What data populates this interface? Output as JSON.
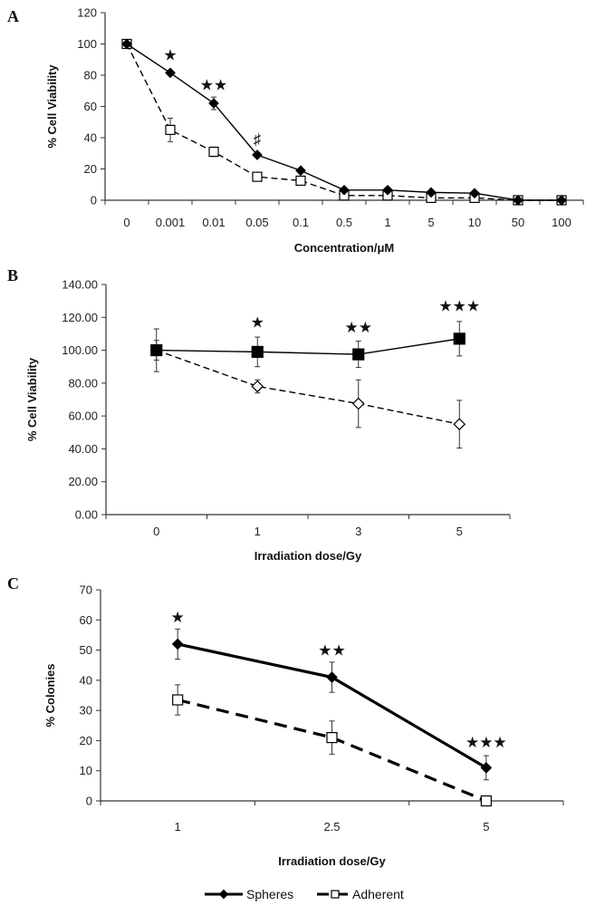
{
  "chart_data": [
    {
      "type": "line",
      "panel_label": "A",
      "xlabel": "Concentration/μM",
      "ylabel": "% Cell Viability",
      "categories": [
        "0",
        "0.001",
        "0.01",
        "0.05",
        "0.1",
        "0.5",
        "1",
        "5",
        "10",
        "50",
        "100"
      ],
      "ylim": [
        0,
        120
      ],
      "yticks": [
        "0",
        "20",
        "40",
        "60",
        "80",
        "100",
        "120"
      ],
      "series": [
        {
          "name": "Spheres",
          "marker": "filled-diamond",
          "line": "solid",
          "values": [
            100,
            81.5,
            62,
            29,
            19,
            6.5,
            6.5,
            5,
            4.5,
            0,
            0
          ],
          "errors": [
            0,
            1.5,
            4,
            1.5,
            1.5,
            1,
            1,
            0.5,
            0.5,
            0,
            0
          ]
        },
        {
          "name": "Adherent",
          "marker": "open-square",
          "line": "dashed",
          "values": [
            100,
            45,
            31,
            15,
            12.5,
            3,
            3,
            1.5,
            1.5,
            0,
            0
          ],
          "errors": [
            0,
            7.5,
            3,
            1,
            1,
            0.5,
            0.5,
            0.5,
            0.5,
            0,
            0
          ]
        }
      ],
      "annotations": [
        {
          "category": "0.001",
          "text": "★",
          "y": 93
        },
        {
          "category": "0.01",
          "text": "★★",
          "y": 74
        },
        {
          "category": "0.05",
          "text": "♯",
          "y": 39
        }
      ]
    },
    {
      "type": "line",
      "panel_label": "B",
      "xlabel": "Irradiation dose/Gy",
      "ylabel": "% Cell Viability",
      "categories": [
        "0",
        "1",
        "3",
        "5"
      ],
      "ylim": [
        0,
        140
      ],
      "yticks": [
        "0.00",
        "20.00",
        "40.00",
        "60.00",
        "80.00",
        "100.00",
        "120.00",
        "140.00"
      ],
      "series": [
        {
          "name": "Spheres",
          "marker": "filled-square",
          "line": "solid",
          "values": [
            100,
            99,
            97.5,
            107
          ],
          "errors": [
            13,
            9,
            8,
            10.5
          ]
        },
        {
          "name": "Adherent",
          "marker": "open-diamond",
          "line": "dashed",
          "values": [
            100,
            78,
            67.5,
            55
          ],
          "errors": [
            6,
            4,
            14.5,
            14.5
          ]
        }
      ],
      "annotations": [
        {
          "category": "1",
          "text": "★",
          "y": 117
        },
        {
          "category": "3",
          "text": "★★",
          "y": 114
        },
        {
          "category": "5",
          "text": "★★★",
          "y": 127
        }
      ]
    },
    {
      "type": "line",
      "panel_label": "C",
      "xlabel": "Irradiation dose/Gy",
      "ylabel": "% Colonies",
      "categories": [
        "1",
        "2.5",
        "5"
      ],
      "ylim": [
        0,
        70
      ],
      "yticks": [
        "0",
        "10",
        "20",
        "30",
        "40",
        "50",
        "60",
        "70"
      ],
      "series": [
        {
          "name": "Spheres",
          "marker": "filled-diamond",
          "line": "solid",
          "values": [
            52,
            41,
            11
          ],
          "errors": [
            5,
            5,
            4
          ]
        },
        {
          "name": "Adherent",
          "marker": "open-square",
          "line": "dashed",
          "values": [
            33.5,
            21,
            0
          ],
          "errors": [
            5,
            5.5,
            0
          ]
        }
      ],
      "annotations": [
        {
          "category": "1",
          "text": "★",
          "y": 61
        },
        {
          "category": "2.5",
          "text": "★★",
          "y": 50
        },
        {
          "category": "5",
          "text": "★★★",
          "y": 19.5
        }
      ],
      "legend": {
        "placement": "bottom",
        "entries": [
          "Spheres",
          "Adherent"
        ]
      }
    }
  ]
}
